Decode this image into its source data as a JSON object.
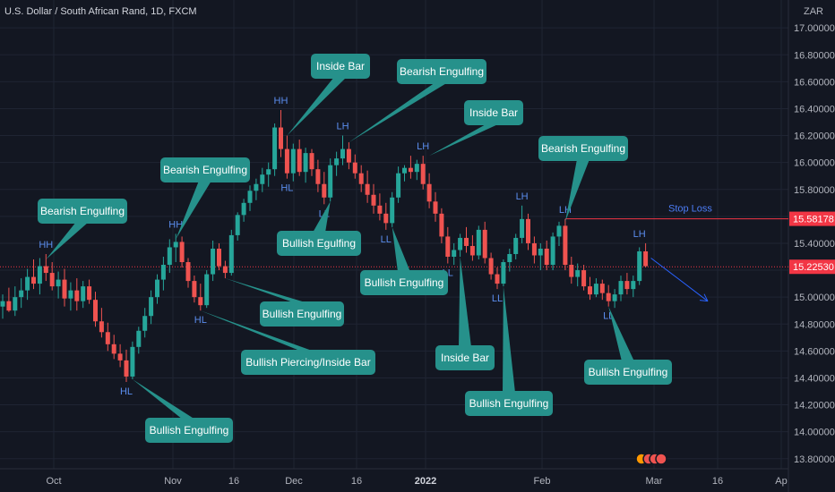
{
  "header": {
    "title": "U.S. Dollar / South African Rand, 1D, FXCM"
  },
  "axis": {
    "unit": "ZAR"
  },
  "colors": {
    "bull": "#26a69a",
    "bear": "#ef5350",
    "callout": "#26918b",
    "line_red": "#f23645",
    "label_blue": "#2962ff",
    "grid": "#1f2433",
    "text": "#b2b5be"
  },
  "chart_data": {
    "type": "candlestick",
    "ylim": [
      13.7,
      17.1
    ],
    "yticks": [
      "17.00000",
      "16.80000",
      "16.60000",
      "16.40000",
      "16.20000",
      "16.00000",
      "15.80000",
      "15.60000",
      "15.40000",
      "15.20000",
      "15.00000",
      "14.80000",
      "14.60000",
      "14.40000",
      "14.20000",
      "14.00000",
      "13.80000"
    ],
    "xticks": [
      "Oct",
      "Nov",
      "16",
      "Dec",
      "16",
      "2022",
      "Feb",
      "Mar",
      "16",
      "Ap"
    ],
    "price_labels": [
      {
        "value": 15.58178,
        "text": "15.58178",
        "color": "#f23645"
      },
      {
        "value": 15.2253,
        "text": "15.22530",
        "color": "#f23645"
      }
    ],
    "stop_loss": {
      "value": 15.58178,
      "text": "Stop Loss"
    },
    "current_price": 15.2253,
    "candles": [
      [
        14.93,
        15.02,
        14.84,
        14.97
      ],
      [
        14.97,
        15.07,
        14.89,
        14.9
      ],
      [
        14.9,
        15.08,
        14.86,
        15.0
      ],
      [
        15.0,
        15.14,
        14.92,
        15.05
      ],
      [
        15.05,
        15.21,
        14.98,
        15.15
      ],
      [
        15.15,
        15.28,
        15.06,
        15.1
      ],
      [
        15.1,
        15.29,
        15.02,
        15.23
      ],
      [
        15.23,
        15.32,
        15.12,
        15.18
      ],
      [
        15.18,
        15.26,
        15.05,
        15.08
      ],
      [
        15.08,
        15.19,
        14.99,
        15.13
      ],
      [
        15.13,
        15.21,
        14.93,
        14.99
      ],
      [
        14.99,
        15.11,
        14.9,
        15.05
      ],
      [
        15.05,
        15.14,
        14.9,
        14.97
      ],
      [
        14.97,
        15.12,
        14.92,
        15.08
      ],
      [
        15.08,
        15.13,
        14.95,
        14.98
      ],
      [
        14.98,
        15.04,
        14.78,
        14.82
      ],
      [
        14.82,
        14.92,
        14.7,
        14.74
      ],
      [
        14.74,
        14.81,
        14.6,
        14.65
      ],
      [
        14.65,
        14.72,
        14.54,
        14.58
      ],
      [
        14.58,
        14.65,
        14.48,
        14.53
      ],
      [
        14.53,
        14.61,
        14.37,
        14.41
      ],
      [
        14.41,
        14.67,
        14.39,
        14.63
      ],
      [
        14.63,
        14.78,
        14.58,
        14.75
      ],
      [
        14.75,
        14.92,
        14.7,
        14.86
      ],
      [
        14.86,
        15.05,
        14.8,
        15.0
      ],
      [
        15.0,
        15.17,
        14.95,
        15.13
      ],
      [
        15.13,
        15.3,
        15.05,
        15.24
      ],
      [
        15.24,
        15.43,
        15.18,
        15.37
      ],
      [
        15.37,
        15.47,
        15.26,
        15.41
      ],
      [
        15.41,
        15.45,
        15.22,
        15.26
      ],
      [
        15.26,
        15.29,
        15.07,
        15.12
      ],
      [
        15.12,
        15.16,
        14.96,
        15.0
      ],
      [
        15.0,
        15.1,
        14.9,
        14.94
      ],
      [
        14.94,
        15.2,
        14.92,
        15.17
      ],
      [
        15.17,
        15.42,
        15.12,
        15.36
      ],
      [
        15.36,
        15.4,
        15.2,
        15.23
      ],
      [
        15.23,
        15.27,
        15.14,
        15.18
      ],
      [
        15.18,
        15.5,
        15.16,
        15.46
      ],
      [
        15.46,
        15.63,
        15.42,
        15.61
      ],
      [
        15.61,
        15.73,
        15.56,
        15.7
      ],
      [
        15.7,
        15.83,
        15.64,
        15.79
      ],
      [
        15.79,
        15.88,
        15.72,
        15.84
      ],
      [
        15.84,
        15.96,
        15.78,
        15.91
      ],
      [
        15.91,
        16.0,
        15.82,
        15.95
      ],
      [
        15.95,
        16.29,
        15.9,
        16.26
      ],
      [
        16.26,
        16.39,
        16.04,
        16.1
      ],
      [
        16.1,
        16.2,
        15.88,
        15.92
      ],
      [
        15.92,
        16.14,
        15.86,
        16.1
      ],
      [
        16.1,
        16.17,
        15.9,
        15.93
      ],
      [
        15.93,
        16.11,
        15.85,
        16.07
      ],
      [
        16.07,
        16.1,
        15.9,
        15.95
      ],
      [
        15.95,
        16.02,
        15.78,
        15.84
      ],
      [
        15.84,
        15.93,
        15.69,
        15.74
      ],
      [
        15.74,
        16.03,
        15.71,
        15.98
      ],
      [
        15.98,
        16.08,
        15.9,
        16.03
      ],
      [
        16.03,
        16.2,
        15.98,
        16.1
      ],
      [
        16.1,
        16.15,
        15.95,
        16.0
      ],
      [
        16.0,
        16.06,
        15.88,
        15.92
      ],
      [
        15.92,
        15.98,
        15.78,
        15.84
      ],
      [
        15.84,
        15.94,
        15.7,
        15.76
      ],
      [
        15.76,
        15.84,
        15.62,
        15.68
      ],
      [
        15.68,
        15.77,
        15.57,
        15.62
      ],
      [
        15.62,
        15.7,
        15.5,
        15.55
      ],
      [
        15.55,
        15.78,
        15.52,
        15.74
      ],
      [
        15.74,
        15.97,
        15.7,
        15.92
      ],
      [
        15.92,
        15.98,
        15.86,
        15.96
      ],
      [
        15.96,
        16.05,
        15.88,
        15.93
      ],
      [
        15.93,
        16.02,
        15.87,
        15.99
      ],
      [
        15.99,
        16.05,
        15.8,
        15.84
      ],
      [
        15.84,
        15.92,
        15.66,
        15.71
      ],
      [
        15.71,
        15.78,
        15.56,
        15.62
      ],
      [
        15.62,
        15.66,
        15.4,
        15.45
      ],
      [
        15.45,
        15.52,
        15.25,
        15.3
      ],
      [
        15.3,
        15.4,
        15.24,
        15.35
      ],
      [
        15.35,
        15.47,
        15.3,
        15.44
      ],
      [
        15.44,
        15.52,
        15.33,
        15.38
      ],
      [
        15.38,
        15.46,
        15.27,
        15.31
      ],
      [
        15.31,
        15.53,
        15.28,
        15.5
      ],
      [
        15.5,
        15.56,
        15.25,
        15.29
      ],
      [
        15.29,
        15.33,
        15.13,
        15.17
      ],
      [
        15.17,
        15.22,
        15.06,
        15.1
      ],
      [
        15.1,
        15.28,
        15.08,
        15.26
      ],
      [
        15.26,
        15.36,
        15.19,
        15.32
      ],
      [
        15.32,
        15.47,
        15.28,
        15.44
      ],
      [
        15.44,
        15.68,
        15.4,
        15.58
      ],
      [
        15.58,
        15.62,
        15.35,
        15.4
      ],
      [
        15.4,
        15.45,
        15.25,
        15.31
      ],
      [
        15.31,
        15.4,
        15.2,
        15.36
      ],
      [
        15.36,
        15.42,
        15.2,
        15.24
      ],
      [
        15.24,
        15.48,
        15.2,
        15.45
      ],
      [
        15.45,
        15.56,
        15.38,
        15.53
      ],
      [
        15.53,
        15.58,
        15.2,
        15.24
      ],
      [
        15.24,
        15.3,
        15.1,
        15.15
      ],
      [
        15.15,
        15.25,
        15.08,
        15.2
      ],
      [
        15.2,
        15.24,
        15.05,
        15.08
      ],
      [
        15.08,
        15.15,
        14.98,
        15.02
      ],
      [
        15.02,
        15.14,
        15.0,
        15.1
      ],
      [
        15.1,
        15.13,
        14.98,
        15.03
      ],
      [
        15.03,
        15.09,
        14.93,
        14.97
      ],
      [
        14.97,
        15.06,
        14.92,
        15.02
      ],
      [
        15.02,
        15.16,
        14.97,
        15.12
      ],
      [
        15.12,
        15.18,
        15.02,
        15.06
      ],
      [
        15.06,
        15.16,
        15.0,
        15.12
      ],
      [
        15.12,
        15.37,
        15.09,
        15.34
      ],
      [
        15.34,
        15.4,
        15.22,
        15.23
      ]
    ],
    "swing_labels": [
      {
        "text": "HH",
        "i": 7,
        "price": 15.32,
        "pos": "above"
      },
      {
        "text": "HL",
        "i": 20,
        "price": 14.37,
        "pos": "below"
      },
      {
        "text": "HH",
        "i": 28,
        "price": 15.47,
        "pos": "above"
      },
      {
        "text": "HL",
        "i": 32,
        "price": 14.9,
        "pos": "below"
      },
      {
        "text": "HH",
        "i": 45,
        "price": 16.39,
        "pos": "above"
      },
      {
        "text": "HL",
        "i": 46,
        "price": 15.88,
        "pos": "below"
      },
      {
        "text": "LL",
        "i": 52,
        "price": 15.69,
        "pos": "below"
      },
      {
        "text": "LH",
        "i": 55,
        "price": 16.2,
        "pos": "above"
      },
      {
        "text": "LL",
        "i": 62,
        "price": 15.5,
        "pos": "below"
      },
      {
        "text": "LH",
        "i": 68,
        "price": 16.05,
        "pos": "above"
      },
      {
        "text": "LL",
        "i": 72,
        "price": 15.25,
        "pos": "below"
      },
      {
        "text": "LL",
        "i": 80,
        "price": 15.06,
        "pos": "below"
      },
      {
        "text": "LH",
        "i": 84,
        "price": 15.68,
        "pos": "above"
      },
      {
        "text": "LH",
        "i": 91,
        "price": 15.58,
        "pos": "above"
      },
      {
        "text": "LL",
        "i": 98,
        "price": 14.93,
        "pos": "below"
      },
      {
        "text": "LH",
        "i": 103,
        "price": 15.4,
        "pos": "above"
      }
    ],
    "annotations": [
      {
        "text": "Bearish Engulfing",
        "i": 7,
        "price": 15.28
      },
      {
        "text": "Bullish Engulfing",
        "i": 21,
        "price": 14.39
      },
      {
        "text": "Bearish Engulfing",
        "i": 28,
        "price": 15.43
      },
      {
        "text": "Bullish Piercing/Inside Bar",
        "i": 32,
        "price": 14.9
      },
      {
        "text": "Bullish Engulfing",
        "i": 36,
        "price": 15.14
      },
      {
        "text": "Inside Bar",
        "i": 46,
        "price": 16.2
      },
      {
        "text": "Bearish Engulfing",
        "i": 56,
        "price": 16.15
      },
      {
        "text": "Bullish Egulfing",
        "i": 53,
        "price": 15.71
      },
      {
        "text": "Bullish Engulfing",
        "i": 63,
        "price": 15.52
      },
      {
        "text": "Inside Bar",
        "i": 69,
        "price": 16.05
      },
      {
        "text": "Inside Bar",
        "i": 74,
        "price": 15.3
      },
      {
        "text": "Bullish Engulfing",
        "i": 81,
        "price": 15.08
      },
      {
        "text": "Bearish Engulfing",
        "i": 91,
        "price": 15.56
      },
      {
        "text": "Bullish Engulfing",
        "i": 98,
        "price": 14.93
      }
    ]
  }
}
